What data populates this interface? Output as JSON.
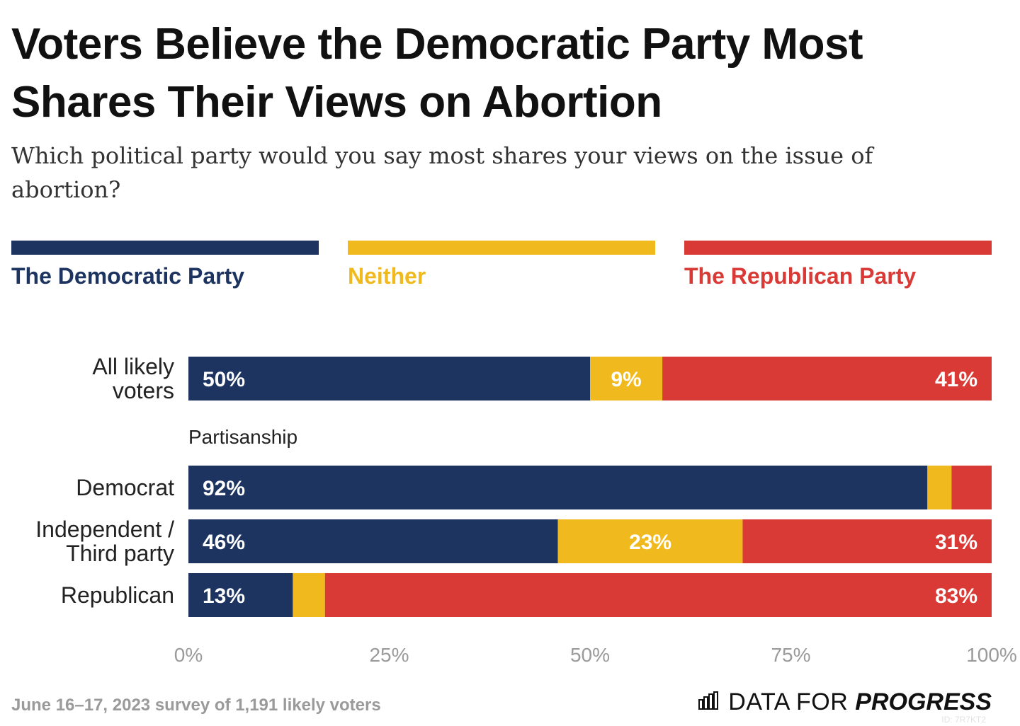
{
  "title": "Voters Believe the Democratic Party Most Shares Their Views on Abortion",
  "subtitle": "Which political party would you say most shares your views on the issue of abortion?",
  "legend": [
    {
      "label": "The Democratic Party",
      "color": "#1d3461"
    },
    {
      "label": "Neither",
      "color": "#f0b91e"
    },
    {
      "label": "The Republican Party",
      "color": "#d93a35"
    }
  ],
  "footnote": "June 16–17, 2023 survey of 1,191 likely voters",
  "logo": {
    "prefix": "DATA FOR",
    "strong": "PROGRESS",
    "icon": "bar-chart-icon"
  },
  "chart_id": "ID: 7R7KT2",
  "chart_data": {
    "type": "bar",
    "orientation": "horizontal",
    "stacked": true,
    "xlim": [
      0,
      100
    ],
    "x_ticks": [
      "0%",
      "25%",
      "50%",
      "75%",
      "100%"
    ],
    "series_names": [
      "The Democratic Party",
      "Neither",
      "The Republican Party"
    ],
    "colors": [
      "#1d3461",
      "#f0b91e",
      "#d93a35"
    ],
    "rows": [
      {
        "label": "All likely voters",
        "values": [
          50,
          9,
          41
        ],
        "labels": [
          "50%",
          "9%",
          "41%"
        ]
      },
      {
        "group_header": "Partisanship"
      },
      {
        "label": "Democrat",
        "values": [
          92,
          3,
          5
        ],
        "labels": [
          "92%",
          "",
          ""
        ]
      },
      {
        "label": "Independent / Third party",
        "values": [
          46,
          23,
          31
        ],
        "labels": [
          "46%",
          "23%",
          "31%"
        ]
      },
      {
        "label": "Republican",
        "values": [
          13,
          4,
          83
        ],
        "labels": [
          "13%",
          "",
          "83%"
        ]
      }
    ]
  }
}
